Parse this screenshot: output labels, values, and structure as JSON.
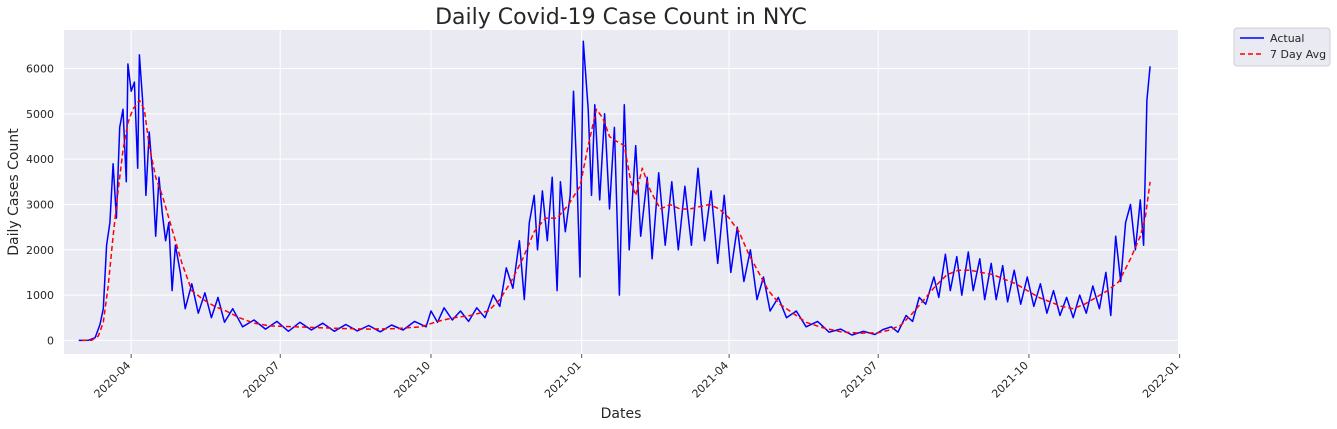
{
  "chart_data": {
    "type": "line",
    "title": "Daily Covid-19 Case Count in NYC",
    "xlabel": "Dates",
    "ylabel": "Daily Cases Count",
    "ylim": [
      -300,
      6850
    ],
    "xlim": [
      "2020-02-20",
      "2021-12-31"
    ],
    "yticks": [
      0,
      1000,
      2000,
      3000,
      4000,
      5000,
      6000
    ],
    "yticklabels": [
      "0",
      "1000",
      "2000",
      "3000",
      "4000",
      "5000",
      "6000"
    ],
    "xticks": [
      "2020-04-01",
      "2020-07-01",
      "2020-10-01",
      "2021-01-01",
      "2021-04-01",
      "2021-07-01",
      "2021-10-01",
      "2022-01-01"
    ],
    "xticklabels": [
      "2020-04",
      "2020-07",
      "2020-10",
      "2021-01",
      "2021-04",
      "2021-07",
      "2021-10",
      "2022-01"
    ],
    "grid": true,
    "legend_position": "outside top-right",
    "colors": {
      "background": "#eaeaf2",
      "grid": "#ffffff",
      "actual": "#0000ff",
      "avg": "#ff0000",
      "text": "#262626"
    },
    "series": [
      {
        "name": "Actual",
        "style": "solid",
        "anchors": [
          [
            "2020-02-29",
            0
          ],
          [
            "2020-03-06",
            5
          ],
          [
            "2020-03-10",
            60
          ],
          [
            "2020-03-13",
            350
          ],
          [
            "2020-03-15",
            700
          ],
          [
            "2020-03-17",
            2100
          ],
          [
            "2020-03-19",
            2600
          ],
          [
            "2020-03-21",
            3900
          ],
          [
            "2020-03-23",
            2700
          ],
          [
            "2020-03-25",
            4700
          ],
          [
            "2020-03-27",
            5100
          ],
          [
            "2020-03-29",
            3500
          ],
          [
            "2020-03-30",
            6100
          ],
          [
            "2020-04-01",
            5500
          ],
          [
            "2020-04-03",
            5700
          ],
          [
            "2020-04-05",
            3800
          ],
          [
            "2020-04-06",
            6300
          ],
          [
            "2020-04-08",
            5300
          ],
          [
            "2020-04-10",
            3200
          ],
          [
            "2020-04-12",
            4600
          ],
          [
            "2020-04-14",
            3700
          ],
          [
            "2020-04-16",
            2300
          ],
          [
            "2020-04-18",
            3600
          ],
          [
            "2020-04-20",
            2800
          ],
          [
            "2020-04-22",
            2200
          ],
          [
            "2020-04-24",
            2600
          ],
          [
            "2020-04-26",
            1100
          ],
          [
            "2020-04-28",
            2100
          ],
          [
            "2020-05-01",
            1500
          ],
          [
            "2020-05-04",
            700
          ],
          [
            "2020-05-08",
            1250
          ],
          [
            "2020-05-12",
            600
          ],
          [
            "2020-05-16",
            1050
          ],
          [
            "2020-05-20",
            500
          ],
          [
            "2020-05-24",
            950
          ],
          [
            "2020-05-28",
            400
          ],
          [
            "2020-06-02",
            700
          ],
          [
            "2020-06-08",
            300
          ],
          [
            "2020-06-15",
            450
          ],
          [
            "2020-06-22",
            250
          ],
          [
            "2020-06-29",
            420
          ],
          [
            "2020-07-06",
            200
          ],
          [
            "2020-07-13",
            400
          ],
          [
            "2020-07-20",
            230
          ],
          [
            "2020-07-27",
            380
          ],
          [
            "2020-08-03",
            200
          ],
          [
            "2020-08-10",
            350
          ],
          [
            "2020-08-17",
            210
          ],
          [
            "2020-08-24",
            330
          ],
          [
            "2020-08-31",
            190
          ],
          [
            "2020-09-07",
            340
          ],
          [
            "2020-09-14",
            230
          ],
          [
            "2020-09-21",
            420
          ],
          [
            "2020-09-28",
            300
          ],
          [
            "2020-10-01",
            650
          ],
          [
            "2020-10-05",
            400
          ],
          [
            "2020-10-09",
            720
          ],
          [
            "2020-10-14",
            450
          ],
          [
            "2020-10-19",
            650
          ],
          [
            "2020-10-24",
            420
          ],
          [
            "2020-10-29",
            720
          ],
          [
            "2020-11-03",
            500
          ],
          [
            "2020-11-08",
            1000
          ],
          [
            "2020-11-12",
            750
          ],
          [
            "2020-11-16",
            1600
          ],
          [
            "2020-11-20",
            1150
          ],
          [
            "2020-11-24",
            2200
          ],
          [
            "2020-11-27",
            900
          ],
          [
            "2020-11-30",
            2600
          ],
          [
            "2020-12-03",
            3200
          ],
          [
            "2020-12-05",
            2000
          ],
          [
            "2020-12-08",
            3300
          ],
          [
            "2020-12-11",
            2200
          ],
          [
            "2020-12-14",
            3600
          ],
          [
            "2020-12-17",
            1100
          ],
          [
            "2020-12-19",
            3500
          ],
          [
            "2020-12-22",
            2400
          ],
          [
            "2020-12-25",
            3200
          ],
          [
            "2020-12-27",
            5500
          ],
          [
            "2020-12-29",
            3700
          ],
          [
            "2020-12-31",
            1400
          ],
          [
            "2021-01-02",
            6600
          ],
          [
            "2021-01-05",
            5100
          ],
          [
            "2021-01-07",
            3200
          ],
          [
            "2021-01-09",
            5200
          ],
          [
            "2021-01-12",
            3100
          ],
          [
            "2021-01-15",
            5000
          ],
          [
            "2021-01-18",
            2900
          ],
          [
            "2021-01-21",
            4700
          ],
          [
            "2021-01-24",
            1000
          ],
          [
            "2021-01-27",
            5200
          ],
          [
            "2021-01-30",
            2000
          ],
          [
            "2021-02-03",
            4300
          ],
          [
            "2021-02-06",
            2300
          ],
          [
            "2021-02-10",
            3600
          ],
          [
            "2021-02-13",
            1800
          ],
          [
            "2021-02-17",
            3700
          ],
          [
            "2021-02-21",
            2100
          ],
          [
            "2021-02-25",
            3500
          ],
          [
            "2021-03-01",
            2000
          ],
          [
            "2021-03-05",
            3400
          ],
          [
            "2021-03-09",
            2100
          ],
          [
            "2021-03-13",
            3800
          ],
          [
            "2021-03-17",
            2200
          ],
          [
            "2021-03-21",
            3300
          ],
          [
            "2021-03-25",
            1700
          ],
          [
            "2021-03-29",
            3200
          ],
          [
            "2021-04-02",
            1500
          ],
          [
            "2021-04-06",
            2500
          ],
          [
            "2021-04-10",
            1300
          ],
          [
            "2021-04-14",
            2000
          ],
          [
            "2021-04-18",
            900
          ],
          [
            "2021-04-22",
            1400
          ],
          [
            "2021-04-26",
            650
          ],
          [
            "2021-05-01",
            950
          ],
          [
            "2021-05-06",
            500
          ],
          [
            "2021-05-12",
            650
          ],
          [
            "2021-05-18",
            300
          ],
          [
            "2021-05-25",
            420
          ],
          [
            "2021-06-01",
            180
          ],
          [
            "2021-06-08",
            250
          ],
          [
            "2021-06-15",
            120
          ],
          [
            "2021-06-22",
            200
          ],
          [
            "2021-06-29",
            130
          ],
          [
            "2021-07-04",
            240
          ],
          [
            "2021-07-09",
            300
          ],
          [
            "2021-07-13",
            180
          ],
          [
            "2021-07-18",
            550
          ],
          [
            "2021-07-22",
            420
          ],
          [
            "2021-07-26",
            950
          ],
          [
            "2021-07-30",
            800
          ],
          [
            "2021-08-04",
            1400
          ],
          [
            "2021-08-07",
            950
          ],
          [
            "2021-08-11",
            1900
          ],
          [
            "2021-08-14",
            1100
          ],
          [
            "2021-08-18",
            1850
          ],
          [
            "2021-08-21",
            1000
          ],
          [
            "2021-08-25",
            1950
          ],
          [
            "2021-08-28",
            1100
          ],
          [
            "2021-09-01",
            1800
          ],
          [
            "2021-09-04",
            900
          ],
          [
            "2021-09-08",
            1700
          ],
          [
            "2021-09-11",
            900
          ],
          [
            "2021-09-15",
            1650
          ],
          [
            "2021-09-18",
            850
          ],
          [
            "2021-09-22",
            1550
          ],
          [
            "2021-09-26",
            800
          ],
          [
            "2021-09-30",
            1400
          ],
          [
            "2021-10-04",
            750
          ],
          [
            "2021-10-08",
            1250
          ],
          [
            "2021-10-12",
            600
          ],
          [
            "2021-10-16",
            1100
          ],
          [
            "2021-10-20",
            550
          ],
          [
            "2021-10-24",
            950
          ],
          [
            "2021-10-28",
            500
          ],
          [
            "2021-11-01",
            1000
          ],
          [
            "2021-11-05",
            600
          ],
          [
            "2021-11-09",
            1200
          ],
          [
            "2021-11-13",
            700
          ],
          [
            "2021-11-17",
            1500
          ],
          [
            "2021-11-20",
            550
          ],
          [
            "2021-11-23",
            2300
          ],
          [
            "2021-11-26",
            1300
          ],
          [
            "2021-11-29",
            2600
          ],
          [
            "2021-12-02",
            3000
          ],
          [
            "2021-12-05",
            2000
          ],
          [
            "2021-12-08",
            3100
          ],
          [
            "2021-12-10",
            2100
          ],
          [
            "2021-12-12",
            5300
          ],
          [
            "2021-12-14",
            6050
          ]
        ]
      },
      {
        "name": "7 Day Avg",
        "style": "dashed",
        "anchors": [
          [
            "2020-03-02",
            0
          ],
          [
            "2020-03-08",
            5
          ],
          [
            "2020-03-12",
            100
          ],
          [
            "2020-03-15",
            400
          ],
          [
            "2020-03-18",
            1200
          ],
          [
            "2020-03-21",
            2300
          ],
          [
            "2020-03-24",
            3300
          ],
          [
            "2020-03-27",
            4200
          ],
          [
            "2020-03-30",
            4800
          ],
          [
            "2020-04-02",
            5100
          ],
          [
            "2020-04-06",
            5300
          ],
          [
            "2020-04-09",
            5100
          ],
          [
            "2020-04-12",
            4300
          ],
          [
            "2020-04-16",
            3600
          ],
          [
            "2020-04-20",
            3200
          ],
          [
            "2020-04-24",
            2700
          ],
          [
            "2020-04-28",
            2200
          ],
          [
            "2020-05-02",
            1700
          ],
          [
            "2020-05-08",
            1100
          ],
          [
            "2020-05-15",
            900
          ],
          [
            "2020-05-22",
            750
          ],
          [
            "2020-05-29",
            650
          ],
          [
            "2020-06-06",
            500
          ],
          [
            "2020-06-15",
            380
          ],
          [
            "2020-06-25",
            320
          ],
          [
            "2020-07-10",
            300
          ],
          [
            "2020-07-25",
            280
          ],
          [
            "2020-08-10",
            260
          ],
          [
            "2020-08-25",
            250
          ],
          [
            "2020-09-10",
            260
          ],
          [
            "2020-09-25",
            300
          ],
          [
            "2020-10-05",
            420
          ],
          [
            "2020-10-15",
            500
          ],
          [
            "2020-10-25",
            550
          ],
          [
            "2020-11-05",
            650
          ],
          [
            "2020-11-12",
            900
          ],
          [
            "2020-11-19",
            1300
          ],
          [
            "2020-11-26",
            1800
          ],
          [
            "2020-12-03",
            2400
          ],
          [
            "2020-12-10",
            2700
          ],
          [
            "2020-12-17",
            2700
          ],
          [
            "2020-12-24",
            3000
          ],
          [
            "2020-12-31",
            3400
          ],
          [
            "2021-01-05",
            4300
          ],
          [
            "2021-01-10",
            5100
          ],
          [
            "2021-01-14",
            4900
          ],
          [
            "2021-01-18",
            4500
          ],
          [
            "2021-01-22",
            4400
          ],
          [
            "2021-01-27",
            4300
          ],
          [
            "2021-01-31",
            3500
          ],
          [
            "2021-02-03",
            3200
          ],
          [
            "2021-02-07",
            3800
          ],
          [
            "2021-02-12",
            3300
          ],
          [
            "2021-02-18",
            2900
          ],
          [
            "2021-02-24",
            3000
          ],
          [
            "2021-03-02",
            2900
          ],
          [
            "2021-03-08",
            2900
          ],
          [
            "2021-03-14",
            2950
          ],
          [
            "2021-03-20",
            3000
          ],
          [
            "2021-03-26",
            2900
          ],
          [
            "2021-04-01",
            2700
          ],
          [
            "2021-04-07",
            2400
          ],
          [
            "2021-04-13",
            1900
          ],
          [
            "2021-04-19",
            1500
          ],
          [
            "2021-04-25",
            1100
          ],
          [
            "2021-05-02",
            800
          ],
          [
            "2021-05-10",
            600
          ],
          [
            "2021-05-18",
            400
          ],
          [
            "2021-05-28",
            280
          ],
          [
            "2021-06-08",
            190
          ],
          [
            "2021-06-20",
            160
          ],
          [
            "2021-07-01",
            170
          ],
          [
            "2021-07-08",
            230
          ],
          [
            "2021-07-15",
            340
          ],
          [
            "2021-07-22",
            600
          ],
          [
            "2021-07-29",
            900
          ],
          [
            "2021-08-05",
            1200
          ],
          [
            "2021-08-12",
            1450
          ],
          [
            "2021-08-19",
            1550
          ],
          [
            "2021-08-26",
            1550
          ],
          [
            "2021-09-02",
            1500
          ],
          [
            "2021-09-09",
            1450
          ],
          [
            "2021-09-16",
            1350
          ],
          [
            "2021-09-23",
            1250
          ],
          [
            "2021-09-30",
            1100
          ],
          [
            "2021-10-07",
            950
          ],
          [
            "2021-10-14",
            850
          ],
          [
            "2021-10-21",
            750
          ],
          [
            "2021-10-28",
            700
          ],
          [
            "2021-11-04",
            800
          ],
          [
            "2021-11-11",
            950
          ],
          [
            "2021-11-18",
            1100
          ],
          [
            "2021-11-25",
            1300
          ],
          [
            "2021-12-02",
            1800
          ],
          [
            "2021-12-08",
            2300
          ],
          [
            "2021-12-11",
            2700
          ],
          [
            "2021-12-14",
            3500
          ]
        ]
      }
    ]
  }
}
